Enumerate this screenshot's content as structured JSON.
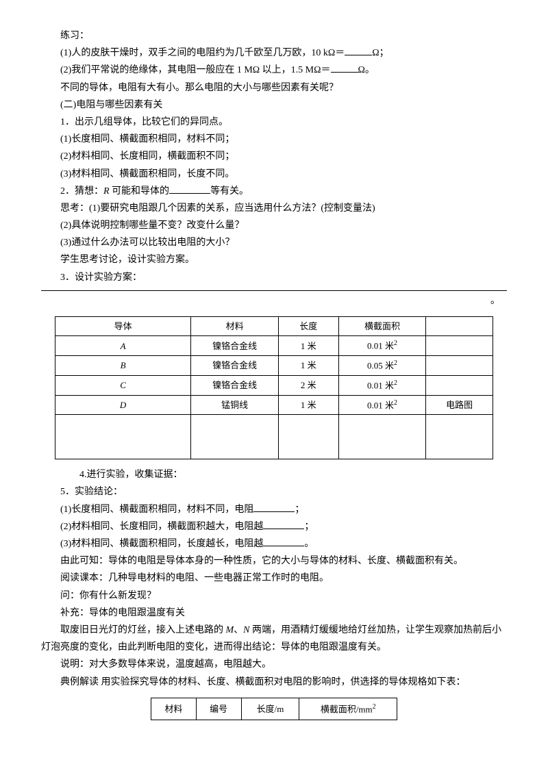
{
  "p1": "练习：",
  "p2a": "(1)人的皮肤干燥时，双手之间的电阻约为几千欧至几万欧，10 kΩ＝",
  "p2b": "Ω；",
  "p3a": "(2)我们平常说的绝缘体，其电阻一般应在 1 MΩ 以上，1.5 MΩ＝",
  "p3b": "Ω。",
  "p4": "不同的导体，电阻有大有小。那么电阻的大小与哪些因素有关呢？",
  "p5": "(二)电阻与哪些因素有关",
  "p6": "1．出示几组导体，比较它们的异同点。",
  "p7": "(1)长度相同、横截面积相同，材料不同；",
  "p8": "(2)材料相同、长度相同，横截面积不同；",
  "p9": "(3)材料相同、横截面积相同，长度不同。",
  "p10a": "2．猜想：",
  "p10b": "R",
  "p10c": " 可能和导体的",
  "p10d": "等有关。",
  "p11": "思考：(1)要研究电阻跟几个因素的关系，应当选用什么方法？(控制变量法)",
  "p12": "(2)具体说明控制哪些量不变？改变什么量？",
  "p13": "(3)通过什么办法可以比较出电阻的大小？",
  "p14": "学生思考讨论，设计实验方案。",
  "p15": "3．设计实验方案：",
  "table1": {
    "headers": [
      "导体",
      "材料",
      "长度",
      "横截面积",
      ""
    ],
    "rows": [
      [
        "A",
        "镍铬合金线",
        "1 米",
        "0.01 米",
        ""
      ],
      [
        "B",
        "镍铬合金线",
        "1 米",
        "0.05 米",
        ""
      ],
      [
        "C",
        "镍铬合金线",
        "2 米",
        "0.01 米",
        ""
      ],
      [
        "D",
        "锰铜线",
        "1 米",
        "0.01 米",
        "电路图"
      ]
    ]
  },
  "p16": "4.进行实验，收集证据：",
  "p17": "5．实验结论：",
  "p18a": "(1)长度相同、横截面积相同，材料不同，电阻",
  "p18b": "；",
  "p19a": "(2)材料相同、长度相同，横截面积越大，电阻越",
  "p19b": "；",
  "p20a": "(3)材料相同、横截面积相同，长度越长，电阻越",
  "p20b": "。",
  "p21": "由此可知：导体的电阻是导体本身的一种性质，它的大小与导体的材料、长度、横截面积有关。",
  "p22": "阅读课本：几种导电材料的电阻、一些电器正常工作时的电阻。",
  "p23": "问：你有什么新发现？",
  "p24": "补充：导体的电阻跟温度有关",
  "p25a": "取废旧日光灯的灯丝，接入上述电路的 ",
  "p25m": "M",
  "p25b": "、",
  "p25n": "N",
  "p25c": " 两端，用酒精灯缓缓地给灯丝加热，让学生观察加热前后小灯泡亮度的变化，由此判断电阻的变化，进而得出结论：导体的电阻跟温度有关。",
  "p26": "说明：对大多数导体来说，温度越高，电阻越大。",
  "p27": "典例解读  用实验探究导体的材料、长度、横截面积对电阻的影响时，供选择的导体规格如下表：",
  "table2": {
    "headers": [
      "材料",
      "编号",
      "长度/m",
      "横截面积/mm"
    ]
  }
}
